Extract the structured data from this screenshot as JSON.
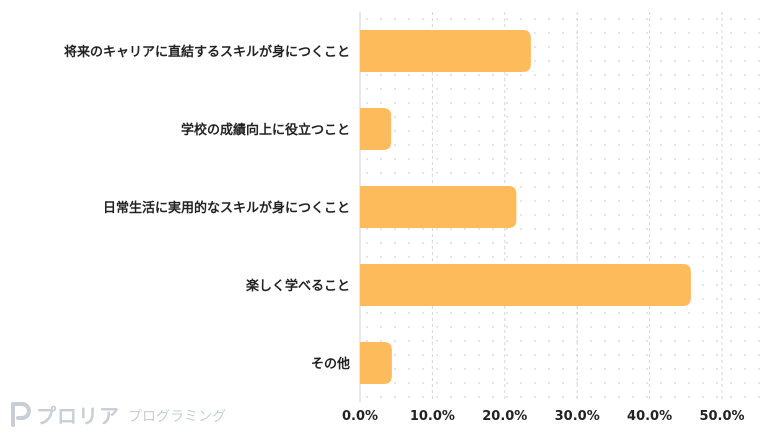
{
  "chart_data": {
    "type": "bar",
    "orientation": "horizontal",
    "categories": [
      "将来のキャリアに直結するスキルが身につくこと",
      "学校の成績向上に役立つこと",
      "日常生活に実用的なスキルが身につくこと",
      "楽しく学べること",
      "その他"
    ],
    "values": [
      23.6,
      4.3,
      21.6,
      45.7,
      4.4
    ],
    "xlim": [
      0,
      50
    ],
    "xticks": [
      "0.0%",
      "10.0%",
      "20.0%",
      "30.0%",
      "40.0%",
      "50.0%"
    ],
    "grid": true,
    "bar_color": "#fdbb5c",
    "title": "",
    "xlabel": "",
    "ylabel": ""
  },
  "logo": {
    "name": "プロリア",
    "sub": "プログラミング",
    "color": "#c8ced6"
  }
}
